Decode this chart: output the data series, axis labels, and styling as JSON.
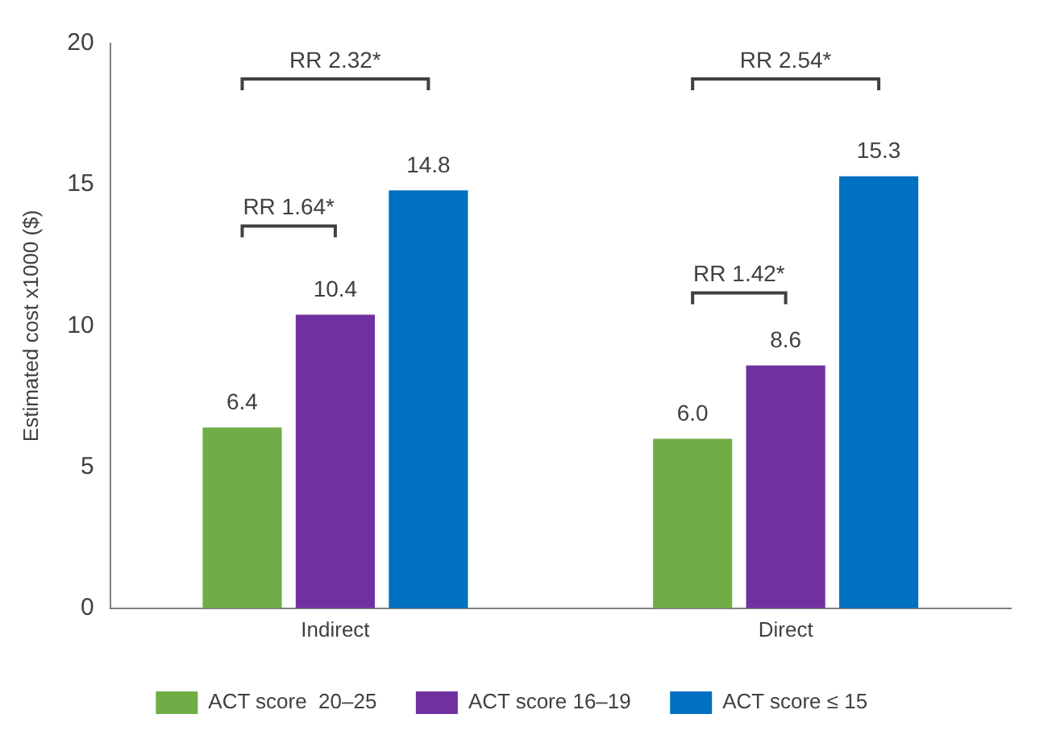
{
  "chart_data": {
    "type": "bar",
    "ylabel": "Estimated cost x1000 ($)",
    "categories": [
      "Indirect",
      "Direct"
    ],
    "series": [
      {
        "name": "ACT score  20–25",
        "color": "#70ad47",
        "values": [
          6.4,
          6.0
        ],
        "value_labels": [
          "6.4",
          "6.0"
        ]
      },
      {
        "name": "ACT score 16–19",
        "color": "#7030a0",
        "values": [
          10.4,
          8.6
        ],
        "value_labels": [
          "10.4",
          "8.6"
        ]
      },
      {
        "name": "ACT score ≤ 15",
        "color": "#0070c0",
        "values": [
          14.8,
          15.3
        ],
        "value_labels": [
          "14.8",
          "15.3"
        ]
      }
    ],
    "ylim": [
      0,
      20
    ],
    "yticks": [
      0,
      5,
      10,
      15,
      20
    ],
    "grid": false,
    "legend": "bottom",
    "annotations": [
      "RR 2.32*",
      "RR 1.64*",
      "RR 2.54*",
      "RR 1.42*"
    ]
  }
}
